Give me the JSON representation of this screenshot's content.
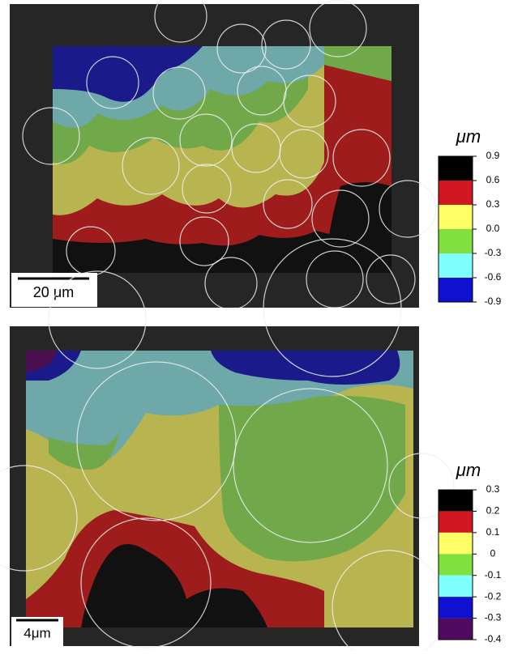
{
  "panels": [
    {
      "unit_label": "μm",
      "scale_bar_label": "20 μm",
      "colorbar": {
        "lim": [
          -0.9,
          0.9
        ],
        "ticks": [
          0.9,
          0.6,
          0.3,
          {
            "value": 0,
            "label": "0.0"
          },
          -0.3,
          -0.6,
          -0.9
        ],
        "colors": [
          "#000000",
          "#d0161e",
          "#ffff66",
          "#80e040",
          "#80ffff",
          "#1010d0"
        ]
      }
    },
    {
      "unit_label": "μm",
      "scale_bar_label": "4μm",
      "colorbar": {
        "lim": [
          -0.4,
          0.3
        ],
        "ticks": [
          0.3,
          0.2,
          0.1,
          0,
          -0.1,
          -0.2,
          -0.3,
          -0.4
        ],
        "colors": [
          "#000000",
          "#d0161e",
          "#ffff66",
          "#80e040",
          "#80ffff",
          "#1010d0",
          "#500a60"
        ]
      }
    }
  ]
}
